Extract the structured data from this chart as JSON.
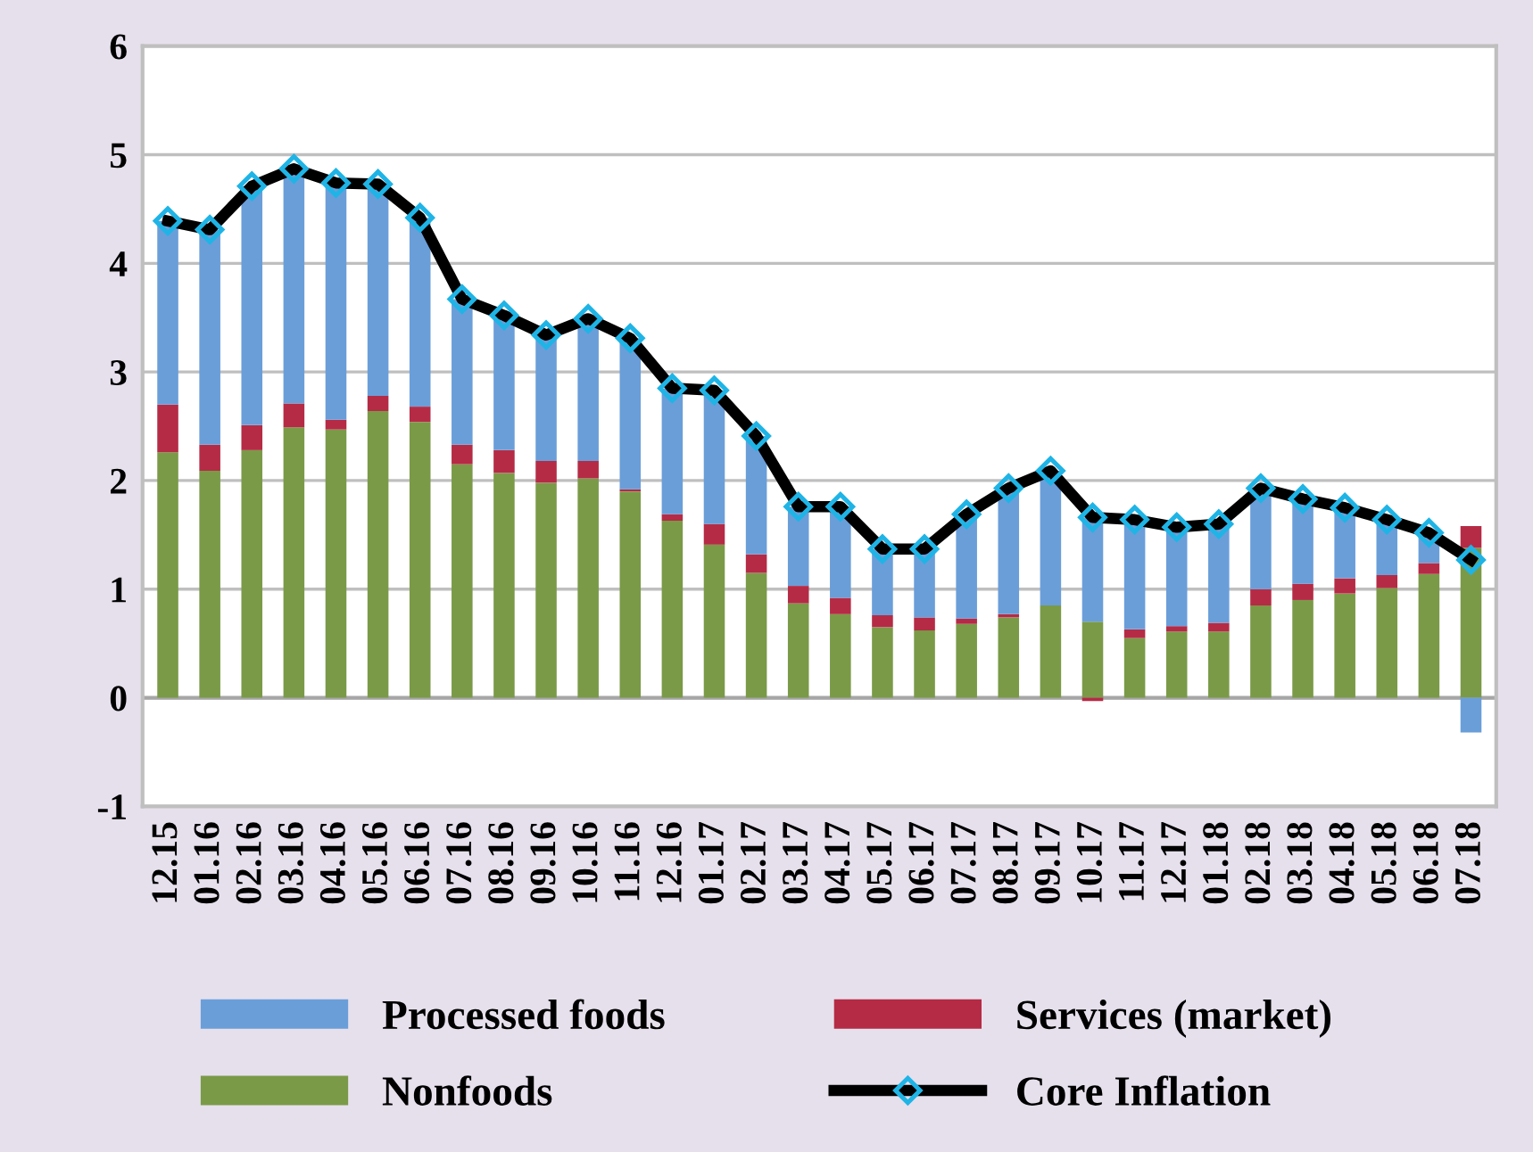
{
  "chart_data": {
    "type": "bar",
    "stacked": true,
    "categories": [
      "12.15",
      "01.16",
      "02.16",
      "03.16",
      "04.16",
      "05.16",
      "06.16",
      "07.16",
      "08.16",
      "09.16",
      "10.16",
      "11.16",
      "12.16",
      "01.17",
      "02.17",
      "03.17",
      "04.17",
      "05.17",
      "06.17",
      "07.17",
      "08.17",
      "09.17",
      "10.17",
      "11.17",
      "12.17",
      "01.18",
      "02.18",
      "03.18",
      "04.18",
      "05.18",
      "06.18",
      "07.18"
    ],
    "series": [
      {
        "name": "Nonfoods",
        "color": "#7a9a48",
        "values": [
          2.26,
          2.09,
          2.28,
          2.49,
          2.47,
          2.64,
          2.54,
          2.15,
          2.07,
          1.98,
          2.02,
          1.9,
          1.63,
          1.41,
          1.15,
          0.87,
          0.77,
          0.65,
          0.62,
          0.68,
          0.74,
          0.85,
          0.7,
          0.55,
          0.61,
          0.61,
          0.85,
          0.9,
          0.96,
          1.01,
          1.14,
          1.38
        ]
      },
      {
        "name": "Services (market)",
        "color": "#b52b45",
        "values": [
          0.44,
          0.24,
          0.23,
          0.22,
          0.09,
          0.14,
          0.14,
          0.18,
          0.21,
          0.2,
          0.16,
          0.02,
          0.06,
          0.19,
          0.17,
          0.16,
          0.15,
          0.11,
          0.12,
          0.05,
          0.03,
          0.0,
          -0.03,
          0.08,
          0.05,
          0.08,
          0.15,
          0.15,
          0.14,
          0.12,
          0.1,
          0.2
        ]
      },
      {
        "name": "Processed foods",
        "color": "#6a9ed9",
        "values": [
          1.69,
          1.98,
          2.2,
          2.16,
          2.18,
          1.95,
          1.74,
          1.34,
          1.24,
          1.16,
          1.31,
          1.39,
          1.16,
          1.23,
          1.09,
          0.73,
          0.84,
          0.61,
          0.63,
          0.96,
          1.16,
          1.24,
          0.96,
          1.01,
          0.91,
          0.91,
          0.93,
          0.78,
          0.65,
          0.51,
          0.28,
          -0.32
        ]
      },
      {
        "name": "Core Inflation",
        "type": "line",
        "color": "#000000",
        "marker": "diamond",
        "values": [
          4.39,
          4.31,
          4.71,
          4.87,
          4.74,
          4.73,
          4.42,
          3.67,
          3.52,
          3.34,
          3.49,
          3.31,
          2.85,
          2.83,
          2.41,
          1.76,
          1.76,
          1.37,
          1.37,
          1.69,
          1.93,
          2.09,
          1.66,
          1.64,
          1.57,
          1.6,
          1.93,
          1.83,
          1.75,
          1.64,
          1.52,
          1.27
        ]
      }
    ],
    "ylim": [
      -1,
      6
    ],
    "yticks": [
      -1,
      0,
      1,
      2,
      3,
      4,
      5,
      6
    ],
    "grid": "y",
    "legend": "bottom"
  }
}
